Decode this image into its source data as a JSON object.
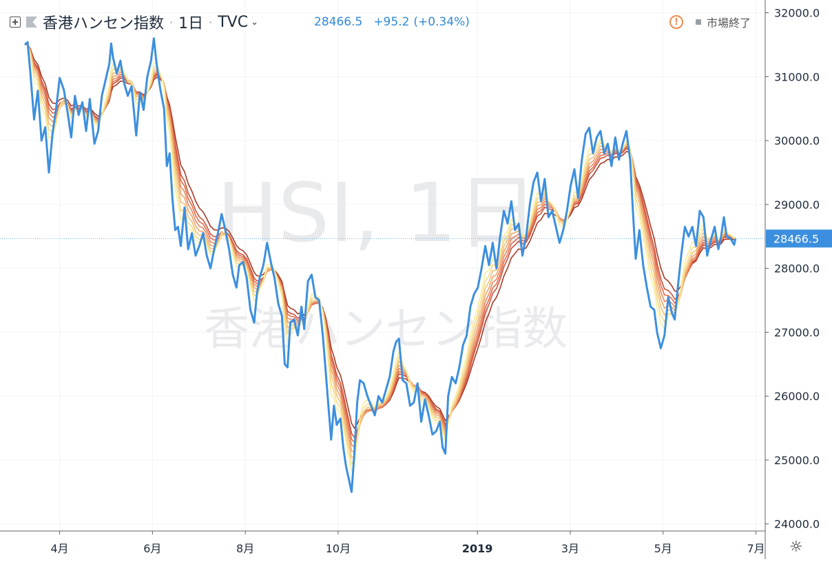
{
  "header": {
    "symbol_name": "香港ハンセン指数",
    "interval": "1日",
    "exchange": "TVC",
    "price": "28466.5",
    "change": "+95.2",
    "change_pct": "(+0.34%)",
    "market_status": "市場終了",
    "icons": [
      "expand-icon",
      "flag-icon",
      "chevron-down-icon",
      "alert-icon",
      "gear-icon"
    ]
  },
  "watermark": {
    "line1": "HSI, 1日",
    "line2": "香港ハンセン指数"
  },
  "chart_data": {
    "type": "line",
    "ylim": [
      23900,
      32200
    ],
    "y_ticks": [
      "32000.0",
      "31000.0",
      "30000.0",
      "29000.0",
      "28000.0",
      "27000.0",
      "26000.0",
      "25000.0",
      "24000.0"
    ],
    "x_ticks": [
      {
        "label": "4月",
        "t": 0.75,
        "bold": false
      },
      {
        "label": "6月",
        "t": 2.75,
        "bold": false
      },
      {
        "label": "8月",
        "t": 4.75,
        "bold": false
      },
      {
        "label": "10月",
        "t": 6.75,
        "bold": false
      },
      {
        "label": "2019",
        "t": 9.75,
        "bold": true
      },
      {
        "label": "3月",
        "t": 11.75,
        "bold": false
      },
      {
        "label": "5月",
        "t": 13.75,
        "bold": false
      },
      {
        "label": "7月",
        "t": 15.75,
        "bold": false
      }
    ],
    "last_price_label": "28466.5",
    "last_price": 28466.5,
    "price_color": "#3c8fde",
    "ribbon_colors": [
      "#f6ee9c",
      "#f7d98a",
      "#f3c07a",
      "#eea36c",
      "#e98860",
      "#e06b4e",
      "#cf5039",
      "#a63a26"
    ],
    "price_series": [
      [
        0,
        31500
      ],
      [
        0.06,
        31540
      ],
      [
        0.12,
        31060
      ],
      [
        0.2,
        30330
      ],
      [
        0.28,
        30780
      ],
      [
        0.36,
        30000
      ],
      [
        0.44,
        30210
      ],
      [
        0.52,
        29500
      ],
      [
        0.6,
        30120
      ],
      [
        0.68,
        30530
      ],
      [
        0.75,
        30980
      ],
      [
        0.84,
        30800
      ],
      [
        0.92,
        30450
      ],
      [
        1,
        30050
      ],
      [
        1.08,
        30700
      ],
      [
        1.16,
        30400
      ],
      [
        1.24,
        30600
      ],
      [
        1.32,
        30150
      ],
      [
        1.4,
        30650
      ],
      [
        1.5,
        29950
      ],
      [
        1.58,
        30150
      ],
      [
        1.66,
        30700
      ],
      [
        1.74,
        30950
      ],
      [
        1.82,
        31200
      ],
      [
        1.86,
        31520
      ],
      [
        1.9,
        31300
      ],
      [
        1.98,
        31050
      ],
      [
        2.06,
        31250
      ],
      [
        2.14,
        30900
      ],
      [
        2.22,
        30700
      ],
      [
        2.3,
        30850
      ],
      [
        2.4,
        30080
      ],
      [
        2.48,
        30750
      ],
      [
        2.56,
        30480
      ],
      [
        2.64,
        31000
      ],
      [
        2.72,
        31250
      ],
      [
        2.78,
        31600
      ],
      [
        2.84,
        31200
      ],
      [
        2.92,
        30800
      ],
      [
        3,
        30500
      ],
      [
        3.06,
        29600
      ],
      [
        3.12,
        29800
      ],
      [
        3.18,
        29100
      ],
      [
        3.24,
        28600
      ],
      [
        3.3,
        28650
      ],
      [
        3.36,
        28350
      ],
      [
        3.44,
        28950
      ],
      [
        3.52,
        28300
      ],
      [
        3.6,
        28550
      ],
      [
        3.68,
        28200
      ],
      [
        3.76,
        28350
      ],
      [
        3.84,
        28550
      ],
      [
        3.92,
        28200
      ],
      [
        4,
        28000
      ],
      [
        4.08,
        28300
      ],
      [
        4.16,
        28550
      ],
      [
        4.24,
        28850
      ],
      [
        4.32,
        28600
      ],
      [
        4.4,
        28300
      ],
      [
        4.48,
        27900
      ],
      [
        4.56,
        27700
      ],
      [
        4.62,
        28050
      ],
      [
        4.7,
        28100
      ],
      [
        4.78,
        27850
      ],
      [
        4.86,
        27350
      ],
      [
        4.94,
        27150
      ],
      [
        5,
        27600
      ],
      [
        5.06,
        27850
      ],
      [
        5.14,
        28050
      ],
      [
        5.22,
        28400
      ],
      [
        5.3,
        28100
      ],
      [
        5.38,
        27850
      ],
      [
        5.46,
        27450
      ],
      [
        5.54,
        27250
      ],
      [
        5.6,
        26500
      ],
      [
        5.66,
        26450
      ],
      [
        5.72,
        27150
      ],
      [
        5.8,
        27200
      ],
      [
        5.88,
        26950
      ],
      [
        5.96,
        27400
      ],
      [
        6.02,
        27050
      ],
      [
        6.1,
        27800
      ],
      [
        6.18,
        27900
      ],
      [
        6.26,
        27550
      ],
      [
        6.34,
        27500
      ],
      [
        6.42,
        26950
      ],
      [
        6.48,
        26400
      ],
      [
        6.54,
        25850
      ],
      [
        6.6,
        25320
      ],
      [
        6.66,
        25850
      ],
      [
        6.72,
        25550
      ],
      [
        6.8,
        25650
      ],
      [
        6.86,
        25200
      ],
      [
        6.92,
        24900
      ],
      [
        6.98,
        24700
      ],
      [
        7.04,
        24500
      ],
      [
        7.1,
        25100
      ],
      [
        7.16,
        25900
      ],
      [
        7.22,
        26250
      ],
      [
        7.3,
        26200
      ],
      [
        7.38,
        26000
      ],
      [
        7.46,
        25850
      ],
      [
        7.54,
        25700
      ],
      [
        7.62,
        26000
      ],
      [
        7.7,
        25900
      ],
      [
        7.78,
        26100
      ],
      [
        7.86,
        26300
      ],
      [
        7.94,
        26700
      ],
      [
        8,
        26850
      ],
      [
        8.06,
        26900
      ],
      [
        8.14,
        26250
      ],
      [
        8.22,
        26200
      ],
      [
        8.3,
        25850
      ],
      [
        8.38,
        25900
      ],
      [
        8.46,
        26200
      ],
      [
        8.54,
        25600
      ],
      [
        8.62,
        25950
      ],
      [
        8.7,
        25700
      ],
      [
        8.78,
        25400
      ],
      [
        8.86,
        25450
      ],
      [
        8.94,
        25600
      ],
      [
        9,
        25200
      ],
      [
        9.06,
        25100
      ],
      [
        9.12,
        26000
      ],
      [
        9.2,
        26300
      ],
      [
        9.28,
        26200
      ],
      [
        9.36,
        26450
      ],
      [
        9.44,
        26800
      ],
      [
        9.52,
        26950
      ],
      [
        9.6,
        27400
      ],
      [
        9.68,
        27600
      ],
      [
        9.76,
        27700
      ],
      [
        9.84,
        28000
      ],
      [
        9.92,
        28350
      ],
      [
        10,
        28050
      ],
      [
        10.08,
        28400
      ],
      [
        10.16,
        28000
      ],
      [
        10.24,
        28500
      ],
      [
        10.32,
        28900
      ],
      [
        10.4,
        28700
      ],
      [
        10.48,
        29050
      ],
      [
        10.56,
        28600
      ],
      [
        10.64,
        28700
      ],
      [
        10.72,
        28200
      ],
      [
        10.8,
        28500
      ],
      [
        10.88,
        29000
      ],
      [
        10.96,
        29350
      ],
      [
        11.04,
        29500
      ],
      [
        11.12,
        29050
      ],
      [
        11.2,
        29400
      ],
      [
        11.28,
        28800
      ],
      [
        11.36,
        28900
      ],
      [
        11.44,
        28650
      ],
      [
        11.52,
        28400
      ],
      [
        11.6,
        28600
      ],
      [
        11.68,
        28900
      ],
      [
        11.76,
        29300
      ],
      [
        11.84,
        29550
      ],
      [
        11.92,
        29100
      ],
      [
        12,
        29700
      ],
      [
        12.08,
        30100
      ],
      [
        12.16,
        30200
      ],
      [
        12.24,
        29800
      ],
      [
        12.32,
        30050
      ],
      [
        12.4,
        30150
      ],
      [
        12.48,
        29800
      ],
      [
        12.56,
        29950
      ],
      [
        12.64,
        29600
      ],
      [
        12.72,
        30050
      ],
      [
        12.8,
        29700
      ],
      [
        12.88,
        29950
      ],
      [
        12.96,
        30150
      ],
      [
        13.04,
        29700
      ],
      [
        13.1,
        28900
      ],
      [
        13.16,
        28150
      ],
      [
        13.24,
        28600
      ],
      [
        13.32,
        28050
      ],
      [
        13.4,
        27700
      ],
      [
        13.48,
        27400
      ],
      [
        13.56,
        27350
      ],
      [
        13.62,
        27000
      ],
      [
        13.7,
        26750
      ],
      [
        13.78,
        26950
      ],
      [
        13.86,
        27550
      ],
      [
        13.94,
        27300
      ],
      [
        14,
        27200
      ],
      [
        14.06,
        27650
      ],
      [
        14.14,
        28200
      ],
      [
        14.22,
        28650
      ],
      [
        14.3,
        28500
      ],
      [
        14.38,
        28650
      ],
      [
        14.46,
        28350
      ],
      [
        14.54,
        28900
      ],
      [
        14.62,
        28800
      ],
      [
        14.7,
        28200
      ],
      [
        14.78,
        28450
      ],
      [
        14.86,
        28650
      ],
      [
        14.94,
        28300
      ],
      [
        15,
        28500
      ],
      [
        15.06,
        28800
      ],
      [
        15.12,
        28500
      ],
      [
        15.2,
        28470
      ],
      [
        15.28,
        28370
      ],
      [
        15.31,
        28466.5
      ]
    ]
  }
}
